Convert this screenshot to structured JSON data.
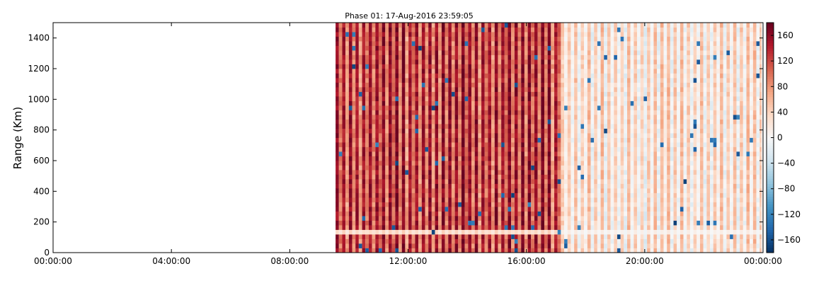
{
  "chart_data": {
    "type": "heatmap",
    "title": "Phase 01: 17-Aug-2016 23:59:05",
    "xlabel": "",
    "ylabel": "Range (Km)",
    "x_range_hours": [
      0,
      24
    ],
    "ylim": [
      0,
      1500
    ],
    "x_ticks": [
      {
        "hour": 0,
        "label": "00:00:00"
      },
      {
        "hour": 4,
        "label": "04:00:00"
      },
      {
        "hour": 8,
        "label": "08:00:00"
      },
      {
        "hour": 12,
        "label": "12:00:00"
      },
      {
        "hour": 16,
        "label": "16:00:00"
      },
      {
        "hour": 20,
        "label": "20:00:00"
      },
      {
        "hour": 24,
        "label": "00:00:00"
      }
    ],
    "y_ticks": [
      0,
      200,
      400,
      600,
      800,
      1000,
      1200,
      1400
    ],
    "colorbar": {
      "colormap": "RdBu_r",
      "range": [
        -180,
        180
      ],
      "ticks": [
        -160,
        -120,
        -80,
        -40,
        0,
        40,
        80,
        120,
        160
      ],
      "ticklabels": [
        "−160",
        "−120",
        "−80",
        "−40",
        "0",
        "40",
        "80",
        "120",
        "160"
      ]
    },
    "data_start_hour": 9.55,
    "data_end_hour": 23.95,
    "regimes": [
      {
        "from_hour": 9.55,
        "to_hour": 17.1,
        "typical_value_range": [
          70,
          175
        ],
        "description_value": "strong positive"
      },
      {
        "from_hour": 17.1,
        "to_hour": 23.95,
        "typical_value_range": [
          -20,
          60
        ],
        "description_value": "weak near zero"
      }
    ],
    "grid": false
  }
}
